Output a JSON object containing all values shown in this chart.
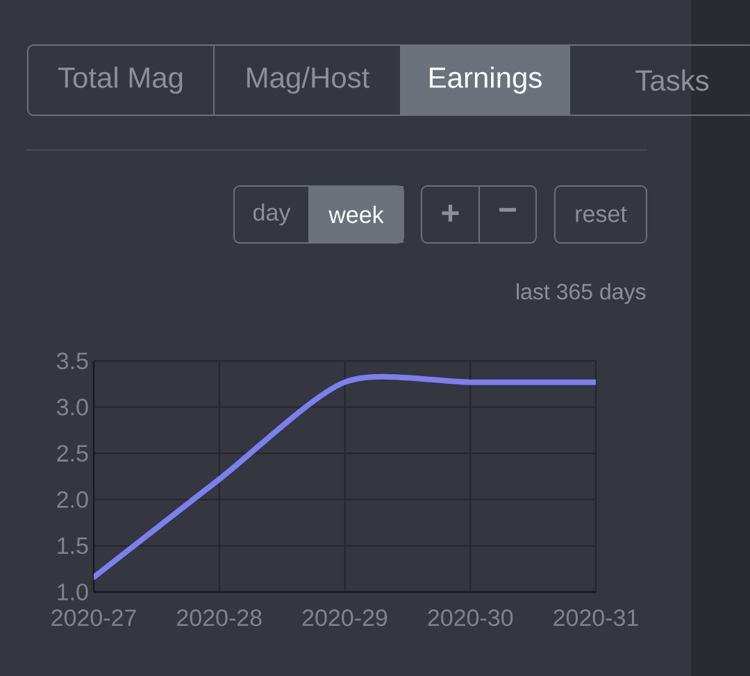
{
  "chart_data": {
    "type": "line",
    "categories": [
      "2020-27",
      "2020-28",
      "2020-29",
      "2020-30",
      "2020-31"
    ],
    "values": [
      1.16,
      2.22,
      3.27,
      3.27,
      3.27
    ],
    "color": "#7c7ff0",
    "ylim": [
      1.0,
      3.5
    ],
    "yticks": [
      {
        "value": 1.0,
        "label": "1.0"
      },
      {
        "value": 1.5,
        "label": "1.5"
      },
      {
        "value": 2.0,
        "label": "2.0"
      },
      {
        "value": 2.5,
        "label": "2.5"
      },
      {
        "value": 3.0,
        "label": "3.0"
      },
      {
        "value": 3.5,
        "label": "3.5"
      }
    ],
    "grid": true,
    "annotations": [
      "Total Mag",
      "Mag/Host",
      "Earnings",
      "Tasks",
      "day",
      "week",
      "+",
      "−",
      "reset",
      "last 365 days"
    ]
  }
}
